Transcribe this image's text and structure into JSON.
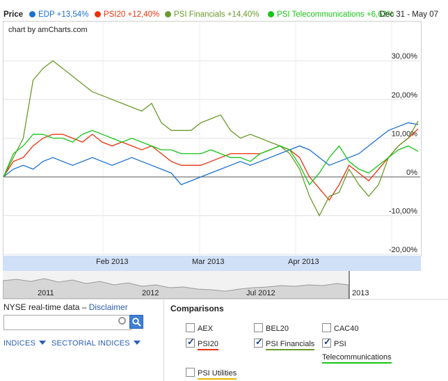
{
  "legend": {
    "price_label": "Price",
    "series": [
      {
        "name": "EDP",
        "change": "+13,54%",
        "color": "#1a6fd0"
      },
      {
        "name": "PSI20",
        "change": "+12,40%",
        "color": "#e8330c"
      },
      {
        "name": "PSI Financials",
        "change": "+14,40%",
        "color": "#6a9a2a"
      },
      {
        "name": "PSI Telecommunications",
        "change": "+6,63%",
        "color": "#17c417"
      }
    ],
    "date_range": "Dec 31 - May 07"
  },
  "chart_credit": "chart by amCharts.com",
  "chart_data": {
    "type": "line",
    "y_tick_labels": [
      "30,00%",
      "20,00%",
      "10,00%",
      "0%",
      "-10,00%",
      "-20,00%"
    ],
    "ylim": [
      -20,
      30
    ],
    "x_tick_labels": [
      "Feb 2013",
      "Mar 2013",
      "Apr 2013"
    ],
    "x": [
      0,
      3,
      6,
      9,
      12,
      15,
      18,
      21,
      24,
      27,
      30,
      33,
      36,
      39,
      42,
      45,
      48,
      51,
      54,
      57,
      60,
      63,
      66,
      69,
      72,
      75,
      78,
      81,
      84,
      87,
      90,
      93,
      96,
      99,
      102,
      105,
      108,
      111,
      114,
      117,
      120,
      123,
      126
    ],
    "series": [
      {
        "name": "EDP",
        "color": "#1a6fd0",
        "values": [
          0,
          2,
          3,
          2,
          4,
          5,
          4,
          3,
          4,
          5,
          4,
          3,
          4,
          5,
          4,
          3,
          2,
          1,
          -2,
          -1,
          0,
          1,
          2,
          3,
          4,
          3,
          4,
          5,
          6,
          7,
          8,
          7,
          5,
          3,
          4,
          5,
          6,
          8,
          10,
          12,
          13,
          14,
          13.5
        ]
      },
      {
        "name": "PSI20",
        "color": "#e8330c",
        "values": [
          0,
          4,
          5,
          8,
          10,
          11,
          11,
          10,
          9,
          11,
          9,
          8,
          9,
          8,
          7,
          8,
          6,
          4,
          3,
          3,
          3,
          4,
          5,
          6,
          6,
          6,
          6,
          7,
          8,
          7,
          5,
          0,
          -3,
          -6,
          -2,
          3,
          1,
          -1,
          2,
          5,
          8,
          10,
          12.4
        ]
      },
      {
        "name": "PSI Financials",
        "color": "#6a9a2a",
        "values": [
          0,
          5,
          10,
          25,
          28,
          30,
          28,
          26,
          24,
          22,
          21,
          20,
          19,
          18,
          17,
          19,
          14,
          12,
          12,
          12,
          14,
          15,
          16,
          12,
          10,
          11,
          10,
          9,
          8,
          6,
          2,
          -5,
          -10,
          -5,
          -4,
          2,
          -2,
          -5,
          -2,
          5,
          8,
          10,
          14.4
        ]
      },
      {
        "name": "PSI Telecommunications",
        "color": "#17c417",
        "values": [
          0,
          6,
          8,
          11,
          11,
          10,
          10,
          9,
          11,
          12,
          11,
          10,
          9,
          10,
          9,
          8,
          7,
          7,
          6,
          6,
          6,
          7,
          6,
          5,
          5,
          4,
          6,
          7,
          8,
          7,
          3,
          -2,
          1,
          5,
          8,
          4,
          2,
          1,
          3,
          5,
          7,
          8,
          6.6
        ]
      }
    ]
  },
  "scroller": {
    "labels": [
      "2011",
      "2012",
      "Jul 2012",
      "2013"
    ]
  },
  "realtime": {
    "text": "NYSE real-time data – ",
    "link": "Disclaimer"
  },
  "search": {
    "value": "",
    "placeholder": ""
  },
  "menus": {
    "indices": "INDICES",
    "sectorial": "SECTORIAL INDICES"
  },
  "comparisons": {
    "title": "Comparisons",
    "items": [
      {
        "label": "AEX",
        "checked": false
      },
      {
        "label": "BEL20",
        "checked": false
      },
      {
        "label": "CAC40",
        "checked": false
      },
      {
        "label": "PSI20",
        "checked": true
      },
      {
        "label": "PSI Financials",
        "checked": true
      },
      {
        "label": "PSI",
        "checked": true
      },
      {
        "label": "Telecommunications",
        "checked": true
      },
      {
        "label": "PSI Utilities",
        "checked": false
      }
    ]
  }
}
